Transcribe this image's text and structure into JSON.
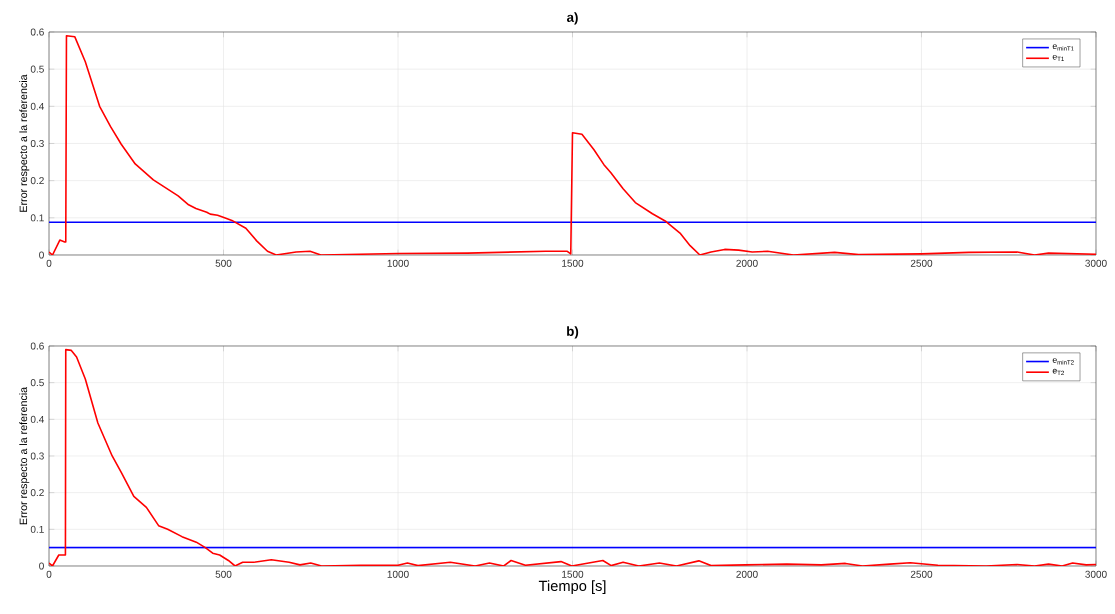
{
  "chart_data": [
    {
      "type": "line",
      "title": "**a)**",
      "ylabel": "Error respecto a la referencia",
      "xlim": [
        0,
        3000
      ],
      "ylim": [
        0,
        0.6
      ],
      "xticks": [
        0,
        500,
        1000,
        1500,
        2000,
        2500,
        3000
      ],
      "yticks": [
        0,
        0.1,
        0.2,
        0.3,
        0.4,
        0.5,
        0.6
      ],
      "grid": true,
      "legend": "top right",
      "series": [
        {
          "name": "e$_{minT1}$",
          "color": "#0000ff",
          "x": [
            0,
            3000
          ],
          "values": [
            0.088,
            0.088
          ]
        },
        {
          "name": "e$_{T1}$",
          "color": "#ff0000",
          "x": [
            0,
            10,
            31,
            45,
            48,
            50,
            74,
            104,
            145,
            176,
            207,
            247,
            299,
            370,
            400,
            421,
            452,
            462,
            483,
            503,
            524,
            564,
            595,
            626,
            651,
            708,
            748,
            779,
            1000,
            1200,
            1423,
            1485,
            1495,
            1500,
            1527,
            1561,
            1590,
            1610,
            1645,
            1680,
            1729,
            1768,
            1808,
            1837,
            1865,
            1897,
            1936,
            1976,
            2015,
            2059,
            2133,
            2251,
            2320,
            2500,
            2636,
            2774,
            2824,
            2864,
            3000
          ],
          "values": [
            0.008,
            0,
            0.04,
            0.035,
            0.035,
            0.59,
            0.587,
            0.52,
            0.4,
            0.346,
            0.298,
            0.245,
            0.202,
            0.159,
            0.135,
            0.125,
            0.115,
            0.11,
            0.107,
            0.1,
            0.093,
            0.072,
            0.038,
            0.01,
            0,
            0.008,
            0.01,
            0,
            0.004,
            0.005,
            0.01,
            0.01,
            0.003,
            0.329,
            0.325,
            0.284,
            0.243,
            0.221,
            0.178,
            0.141,
            0.111,
            0.09,
            0.059,
            0.025,
            0,
            0.008,
            0.015,
            0.013,
            0.008,
            0.01,
            0,
            0.007,
            0.001,
            0.003,
            0.007,
            0.008,
            0,
            0.005,
            0.002
          ]
        }
      ]
    },
    {
      "type": "line",
      "title": "**b)**",
      "xlabel": "Tiempo [s]",
      "ylabel": "Error respecto a la referencia",
      "xlim": [
        0,
        3000
      ],
      "ylim": [
        0,
        0.6
      ],
      "xticks": [
        0,
        500,
        1000,
        1500,
        2000,
        2500,
        3000
      ],
      "yticks": [
        0,
        0.1,
        0.2,
        0.3,
        0.4,
        0.5,
        0.6
      ],
      "grid": true,
      "legend": "top right",
      "series": [
        {
          "name": "e$_{minT2}$",
          "color": "#0000ff",
          "x": [
            0,
            3000
          ],
          "values": [
            0.05,
            0.05
          ]
        },
        {
          "name": "e$_{T2}$",
          "color": "#ff0000",
          "x": [
            0,
            10,
            28,
            47,
            48,
            64,
            79,
            104,
            140,
            181,
            207,
            243,
            279,
            314,
            340,
            381,
            422,
            448,
            469,
            489,
            514,
            533,
            555,
            586,
            637,
            688,
            719,
            750,
            781,
            893,
            1000,
            1027,
            1057,
            1150,
            1221,
            1262,
            1303,
            1324,
            1365,
            1467,
            1498,
            1522,
            1587,
            1611,
            1645,
            1690,
            1749,
            1798,
            1862,
            1897,
            1995,
            2114,
            2213,
            2282,
            2331,
            2409,
            2468,
            2547,
            2685,
            2774,
            2824,
            2864,
            2903,
            2933,
            2972,
            3000
          ],
          "values": [
            0.008,
            0,
            0.03,
            0.03,
            0.59,
            0.588,
            0.57,
            0.51,
            0.39,
            0.3,
            0.255,
            0.19,
            0.16,
            0.11,
            0.1,
            0.08,
            0.065,
            0.05,
            0.035,
            0.03,
            0.015,
            0,
            0.01,
            0.01,
            0.017,
            0.01,
            0.003,
            0.008,
            0,
            0.002,
            0.002,
            0.008,
            0.001,
            0.01,
            0,
            0.008,
            0,
            0.015,
            0.002,
            0.012,
            0,
            0.004,
            0.015,
            0.001,
            0.01,
            0,
            0.008,
            0,
            0.014,
            0.001,
            0.003,
            0.005,
            0.003,
            0.007,
            0,
            0.005,
            0.009,
            0.002,
            0,
            0.004,
            0,
            0.005,
            0,
            0.008,
            0.003,
            0.004
          ]
        }
      ]
    }
  ]
}
